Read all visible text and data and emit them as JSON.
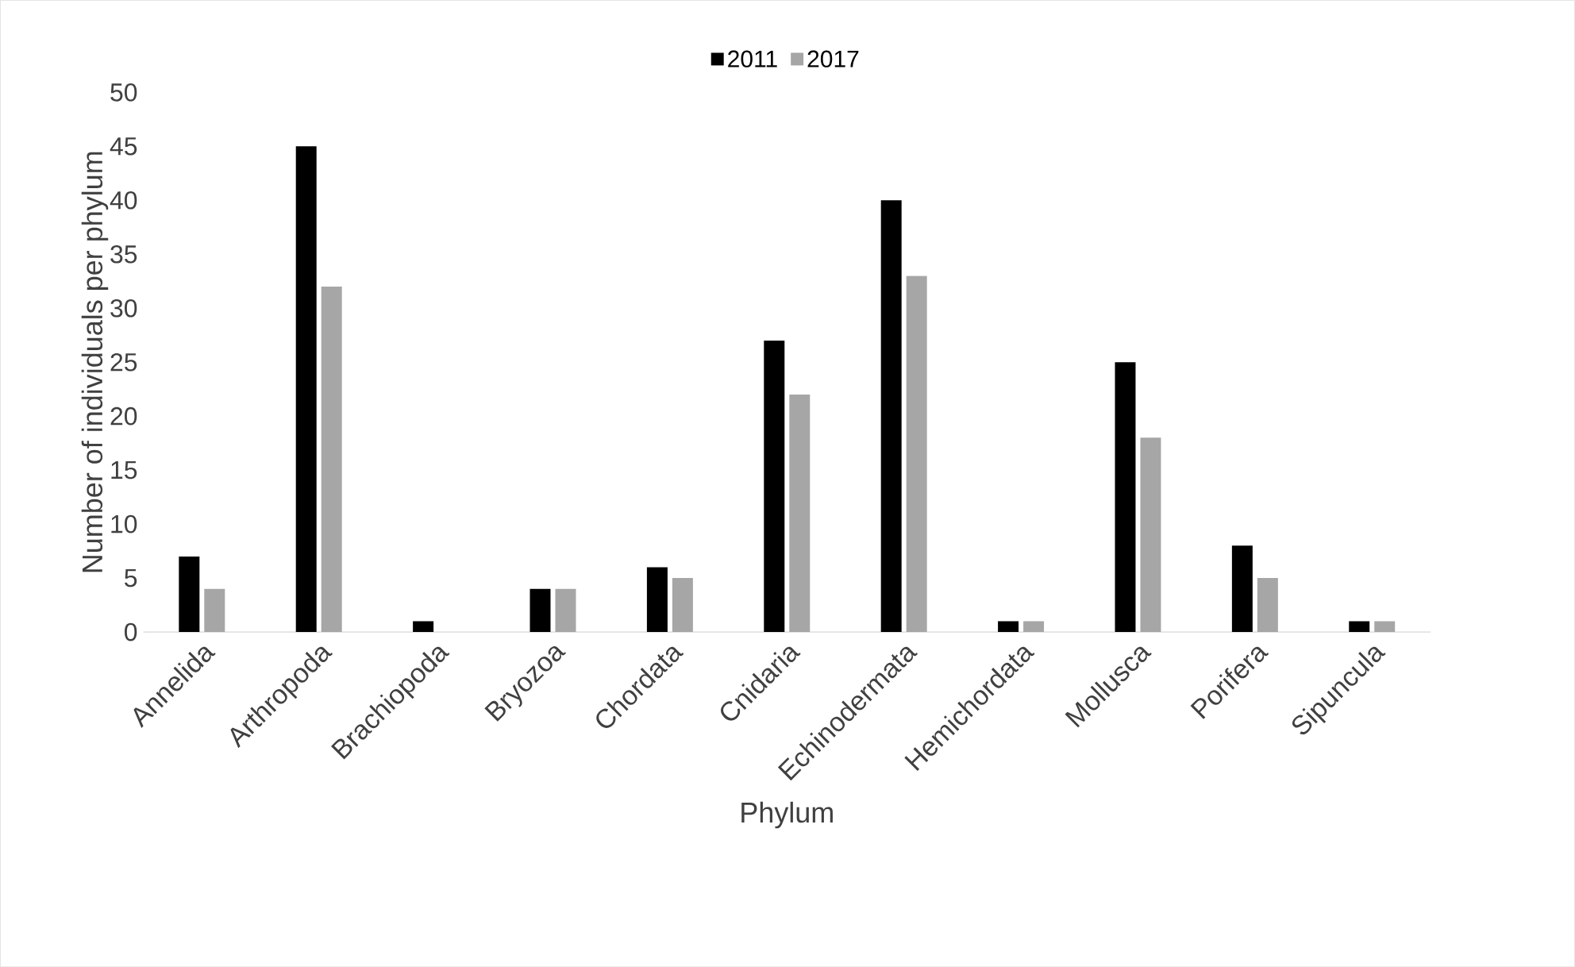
{
  "chart_data": {
    "type": "bar",
    "xlabel": "Phylum",
    "ylabel": "Number of individuals per phylum",
    "categories": [
      "Annelida",
      "Arthropoda",
      "Brachiopoda",
      "Bryozoa",
      "Chordata",
      "Cnidaria",
      "Echinodermata",
      "Hemichordata",
      "Mollusca",
      "Porifera",
      "Sipuncula"
    ],
    "series": [
      {
        "name": "2011",
        "color": "#000000",
        "values": [
          7,
          45,
          1,
          4,
          6,
          27,
          40,
          1,
          25,
          8,
          1
        ]
      },
      {
        "name": "2017",
        "color": "#a6a6a6",
        "values": [
          4,
          32,
          0,
          4,
          5,
          22,
          33,
          1,
          18,
          5,
          1
        ]
      }
    ],
    "ylim": [
      0,
      50
    ],
    "yticks": [
      0,
      5,
      10,
      15,
      20,
      25,
      30,
      35,
      40,
      45,
      50
    ],
    "legend": "top"
  }
}
